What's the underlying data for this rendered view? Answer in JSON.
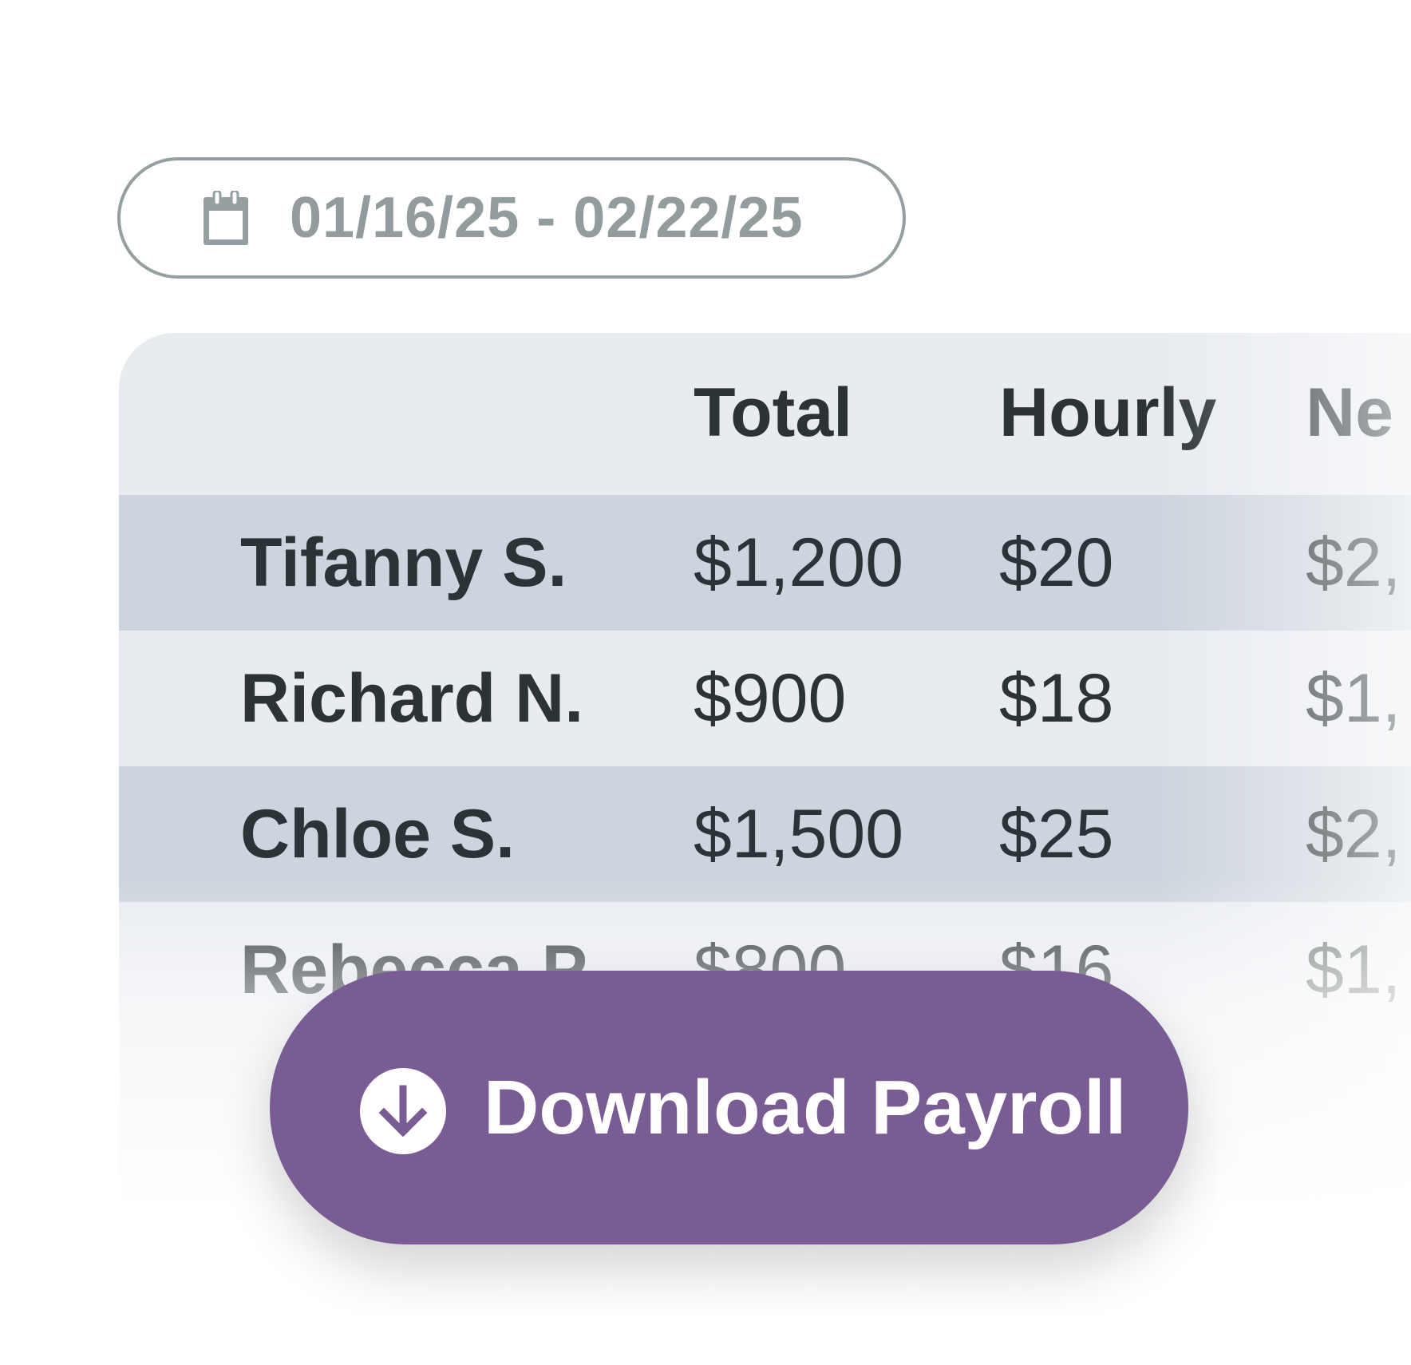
{
  "date_range": {
    "label": "01/16/25 - 02/22/25",
    "icon": "calendar-icon"
  },
  "table": {
    "headers": [
      "",
      "Total",
      "Hourly",
      "Ne"
    ],
    "rows": [
      {
        "name": "Tifanny S.",
        "total": "$1,200",
        "hourly": "$20",
        "net": "$2,",
        "highlighted": true
      },
      {
        "name": "Richard N.",
        "total": "$900",
        "hourly": "$18",
        "net": "$1,",
        "highlighted": false
      },
      {
        "name": "Chloe S.",
        "total": "$1,500",
        "hourly": "$25",
        "net": "$2,",
        "highlighted": true
      },
      {
        "name": "Rebecca P.",
        "total": "$800",
        "hourly": "$16",
        "net": "$1,",
        "highlighted": false
      }
    ]
  },
  "download_button": {
    "label": "Download Payroll",
    "icon": "download-icon",
    "color": "#7a5c94"
  },
  "colors": {
    "row_highlight": "#cdd4dd",
    "card_bg": "#e8ebf0",
    "text": "#2b3336",
    "muted": "#929b9e"
  }
}
